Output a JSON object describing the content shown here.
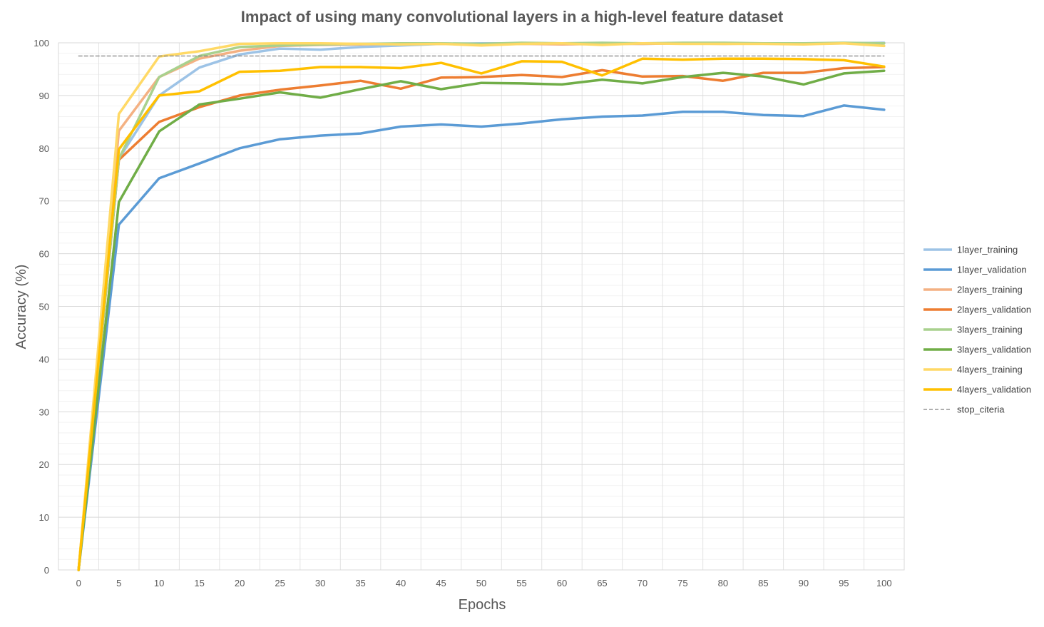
{
  "chart_data": {
    "type": "line",
    "title": "Impact of using many convolutional layers in a high-level feature dataset",
    "xlabel": "Epochs",
    "ylabel": "Accuracy (%)",
    "ylim": [
      0,
      100
    ],
    "y_ticks": [
      0,
      10,
      20,
      30,
      40,
      50,
      60,
      70,
      80,
      90,
      100
    ],
    "x": [
      0,
      5,
      10,
      15,
      20,
      25,
      30,
      35,
      40,
      45,
      50,
      55,
      60,
      65,
      70,
      75,
      80,
      85,
      90,
      95,
      100
    ],
    "grid": true,
    "legend_position": "right",
    "series": [
      {
        "name": "1layer_training",
        "color": "#9DC3E6",
        "style": "solid",
        "values": [
          0,
          78,
          90,
          95.3,
          97.8,
          98.9,
          98.7,
          99.2,
          99.5,
          99.8,
          99.9,
          99.9,
          99.9,
          99.9,
          99.8,
          99.9,
          99.9,
          99.9,
          99.8,
          99.9,
          100
        ]
      },
      {
        "name": "1layer_validation",
        "color": "#5B9BD5",
        "style": "solid",
        "values": [
          0,
          65.5,
          74.3,
          77.1,
          80,
          81.7,
          82.4,
          82.8,
          84.1,
          84.5,
          84.1,
          84.7,
          85.5,
          86,
          86.2,
          86.9,
          86.9,
          86.3,
          86.1,
          88.1,
          87.3
        ]
      },
      {
        "name": "2layers_training",
        "color": "#F4B183",
        "style": "solid",
        "values": [
          0,
          83.3,
          93.5,
          97,
          98.5,
          99.4,
          99.6,
          99.7,
          99.8,
          99.8,
          99.7,
          99.8,
          99.7,
          99.8,
          99.8,
          99.9,
          99.8,
          99.9,
          99.9,
          99.9,
          99.9
        ]
      },
      {
        "name": "2layers_validation",
        "color": "#ED7D31",
        "style": "solid",
        "values": [
          0,
          77.8,
          85,
          87.8,
          90,
          91.1,
          91.9,
          92.8,
          91.3,
          93.4,
          93.5,
          93.9,
          93.5,
          94.8,
          93.6,
          93.7,
          92.8,
          94.3,
          94.3,
          95.2,
          95.4
        ]
      },
      {
        "name": "3layers_training",
        "color": "#A9D18E",
        "style": "solid",
        "values": [
          0,
          78,
          93.5,
          97.5,
          99.2,
          99.5,
          99.7,
          99.8,
          99.9,
          99.9,
          99.8,
          100,
          99.9,
          100,
          99.9,
          100,
          100,
          99.9,
          99.9,
          100,
          99.9
        ]
      },
      {
        "name": "3layers_validation",
        "color": "#70AD47",
        "style": "solid",
        "values": [
          0,
          69.8,
          83.2,
          88.3,
          89.4,
          90.6,
          89.6,
          91.2,
          92.7,
          91.2,
          92.4,
          92.3,
          92.1,
          93,
          92.3,
          93.5,
          94.3,
          93.6,
          92.1,
          94.2,
          94.7
        ]
      },
      {
        "name": "4layers_training",
        "color": "#FFD966",
        "style": "solid",
        "values": [
          0,
          86.5,
          97.4,
          98.4,
          99.8,
          99.9,
          99.9,
          99.8,
          99.7,
          99.8,
          99.5,
          99.8,
          99.9,
          99.6,
          99.9,
          99.8,
          99.8,
          99.8,
          99.7,
          99.9,
          99.4
        ]
      },
      {
        "name": "4layers_validation",
        "color": "#FFC000",
        "style": "solid",
        "values": [
          0,
          79.8,
          90,
          90.8,
          94.5,
          94.7,
          95.4,
          95.4,
          95.2,
          96.2,
          94.2,
          96.5,
          96.4,
          93.8,
          97,
          96.8,
          97,
          97,
          96.9,
          96.7,
          95.5
        ]
      },
      {
        "name": "stop_citeria",
        "color": "#7F7F7F",
        "style": "dashed",
        "values": [
          97.5,
          97.5,
          97.5,
          97.5,
          97.5,
          97.5,
          97.5,
          97.5,
          97.5,
          97.5,
          97.5,
          97.5,
          97.5,
          97.5,
          97.5,
          97.5,
          97.5,
          97.5,
          97.5,
          97.5,
          97.5
        ]
      }
    ]
  }
}
